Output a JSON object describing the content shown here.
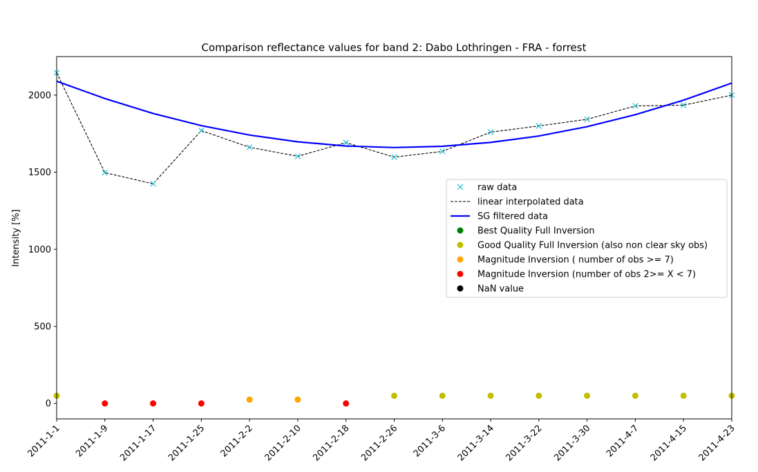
{
  "chart_data": {
    "type": "line",
    "title": "Comparison reflectance values for band 2: Dabo Lothringen - FRA - forrest",
    "xlabel": "",
    "ylabel": "Intensity [%]",
    "ylim": [
      -100,
      2250
    ],
    "yticks": [
      0,
      500,
      1000,
      1500,
      2000
    ],
    "x": [
      "2011-1-1",
      "2011-1-9",
      "2011-1-17",
      "2011-1-25",
      "2011-2-2",
      "2011-2-10",
      "2011-2-18",
      "2011-2-26",
      "2011-3-6",
      "2011-3-14",
      "2011-3-22",
      "2011-3-30",
      "2011-4-7",
      "2011-4-15",
      "2011-4-23"
    ],
    "grid": false,
    "legend_position": "right",
    "series": [
      {
        "name": "raw data",
        "kind": "marker-x",
        "color": "#17becf",
        "values": [
          2145,
          1497,
          1425,
          1770,
          1662,
          1603,
          1692,
          1598,
          1635,
          1760,
          1800,
          1843,
          1930,
          1935,
          2000
        ]
      },
      {
        "name": "linear interpolated data",
        "kind": "dashed-line",
        "color": "#000000",
        "values": [
          2145,
          1497,
          1425,
          1770,
          1662,
          1603,
          1692,
          1598,
          1635,
          1760,
          1800,
          1843,
          1930,
          1935,
          2000
        ]
      },
      {
        "name": "SG filtered data",
        "kind": "solid-line",
        "color": "#0000ff",
        "values": [
          2090,
          1978,
          1881,
          1802,
          1741,
          1697,
          1670,
          1660,
          1668,
          1693,
          1735,
          1795,
          1873,
          1967,
          2078
        ]
      }
    ],
    "quality": {
      "values": [
        50,
        0,
        0,
        0,
        25,
        25,
        0,
        50,
        50,
        50,
        50,
        50,
        50,
        50,
        50
      ],
      "classes": [
        1,
        3,
        3,
        3,
        2,
        2,
        3,
        1,
        1,
        1,
        1,
        1,
        1,
        1,
        1
      ]
    },
    "quality_legend": [
      {
        "name": "Best Quality Full Inversion",
        "color": "#008000"
      },
      {
        "name": "Good Quality Full Inversion (also non clear sky obs)",
        "color": "#bfbf00"
      },
      {
        "name": "Magnitude Inversion ( number of obs >= 7)",
        "color": "#ffa500"
      },
      {
        "name": "Magnitude Inversion (number of obs 2>= X < 7)",
        "color": "#ff0000"
      },
      {
        "name": "NaN value",
        "color": "#000000"
      }
    ]
  }
}
